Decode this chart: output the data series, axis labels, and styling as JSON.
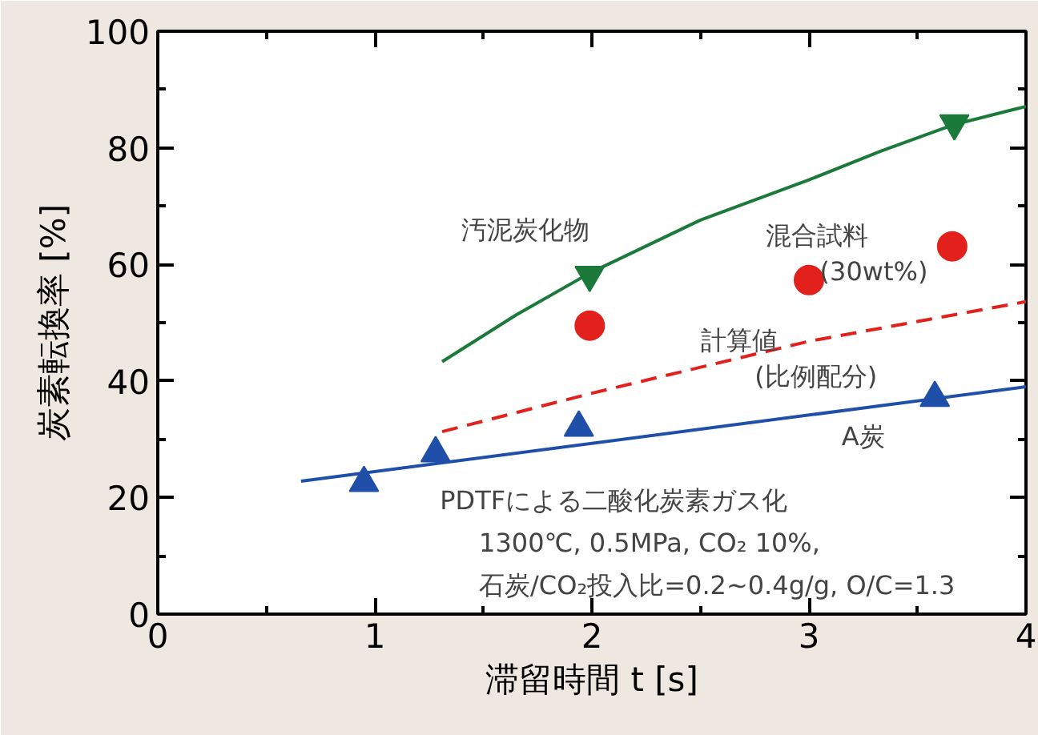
{
  "chart_data": {
    "type": "scatter",
    "xlabel": "滞留時間 t [s]",
    "ylabel": "炭素転換率 [%]",
    "xlim": [
      0,
      4
    ],
    "ylim": [
      0,
      100
    ],
    "xticks": [
      0,
      1,
      2,
      3,
      4
    ],
    "yticks": [
      0,
      20,
      40,
      60,
      80,
      100
    ],
    "grid": false,
    "series": [
      {
        "name": "汚泥炭化物",
        "marker": "triangle_down",
        "color": "#1b7a3a",
        "x": [
          1.99,
          3.67
        ],
        "values": [
          58.2,
          84.2
        ]
      },
      {
        "type": "line",
        "marker": "none",
        "line_style": "solid",
        "color": "#1b7a3a",
        "x": [
          1.31,
          1.65,
          1.99,
          2.5,
          3.0,
          3.33,
          3.67,
          4.0
        ],
        "values": [
          43.3,
          51.3,
          58.5,
          67.6,
          74.5,
          79.4,
          84.0,
          87.1
        ]
      },
      {
        "name": "混合試料\n(30wt%)",
        "marker": "circle",
        "color": "#e3211c",
        "x": [
          1.99,
          3.0,
          3.66
        ],
        "values": [
          49.5,
          57.3,
          63.1
        ]
      },
      {
        "name": "計算値\n(比例配分)",
        "type": "line",
        "marker": "none",
        "line_style": "dashed",
        "color": "#e3211c",
        "x": [
          1.31,
          2.0,
          3.0,
          4.0
        ],
        "values": [
          31.3,
          37.9,
          46.8,
          53.6
        ]
      },
      {
        "name": "A炭",
        "marker": "triangle",
        "color": "#1f4fa8",
        "x": [
          0.95,
          1.28,
          1.94,
          3.58
        ],
        "values": [
          22.5,
          27.6,
          32.0,
          37.1
        ]
      },
      {
        "type": "line",
        "marker": "none",
        "line_style": "solid",
        "color": "#1f4fa8",
        "x": [
          0.66,
          4.0
        ],
        "values": [
          22.8,
          39.0
        ]
      }
    ],
    "annotations": [
      "PDTFによる二酸化炭素ガス化",
      "1300℃, 0.5MPa, CO₂ 10%,",
      "石炭/CO₂投入比=0.2~0.4g/g, O/C=1.3"
    ]
  }
}
